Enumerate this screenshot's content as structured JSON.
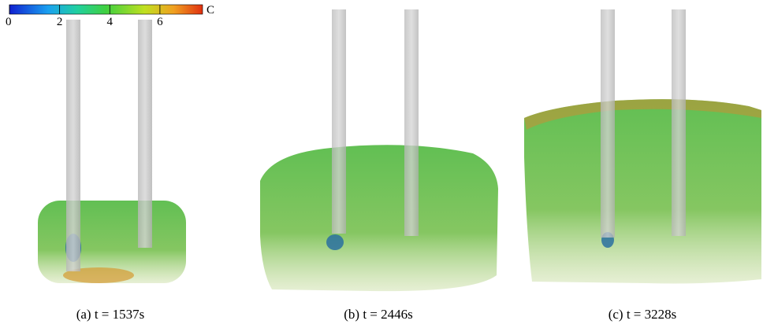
{
  "colorbar": {
    "label": "C",
    "range": [
      0,
      7.7
    ],
    "ticks": [
      0,
      2,
      4,
      6
    ]
  },
  "panels": [
    {
      "caption": "(a) t = 1537s"
    },
    {
      "caption": "(b) t = 2446s"
    },
    {
      "caption": "(c) t = 3228s"
    }
  ]
}
